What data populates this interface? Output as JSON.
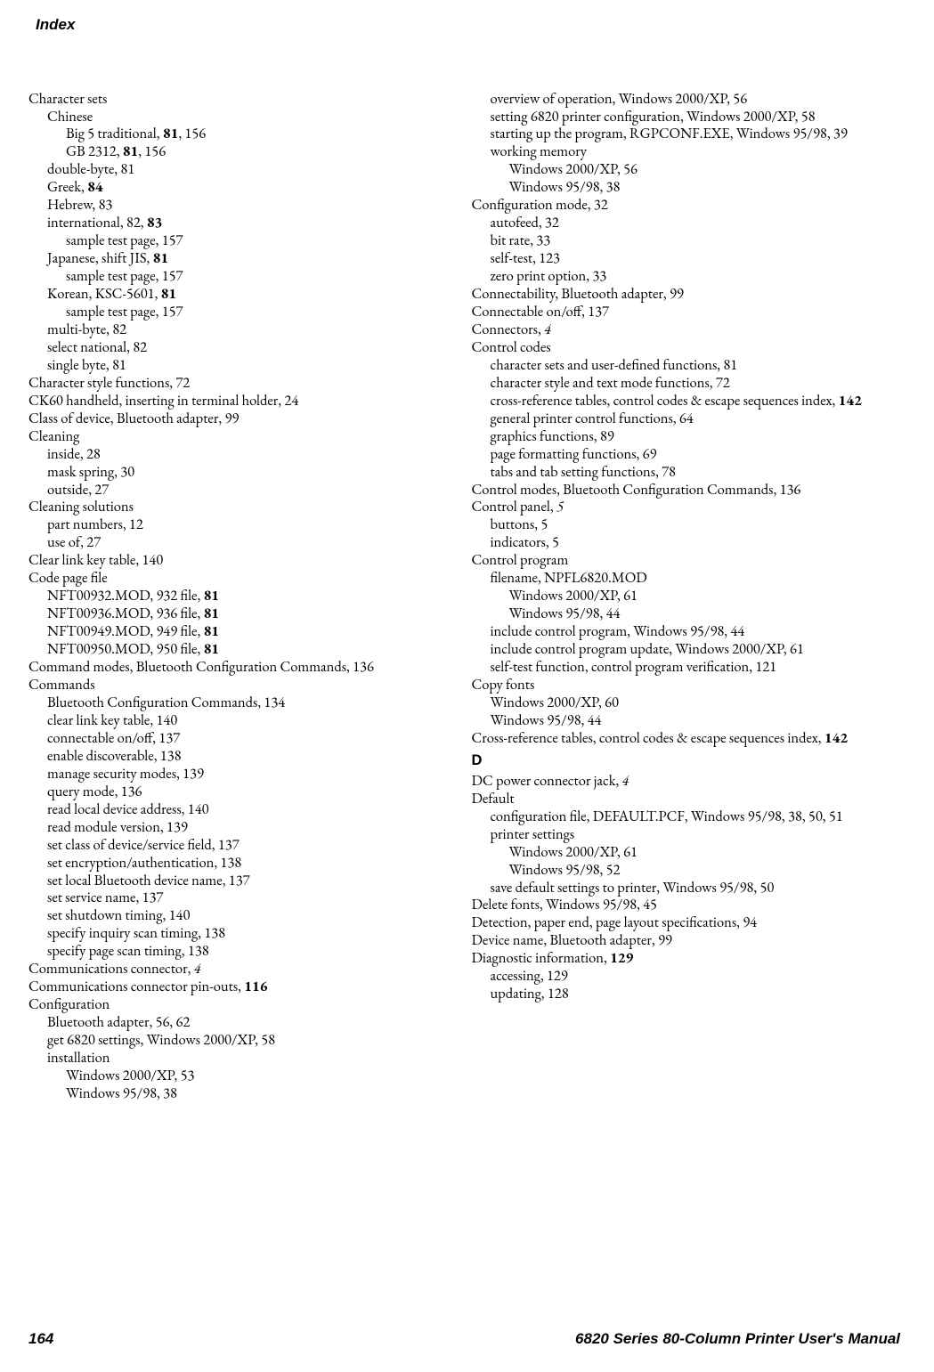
{
  "header": "Index",
  "footer": {
    "page": "164",
    "title": "6820 Series 80-Column Printer User's Manual"
  },
  "left": [
    {
      "lv": 0,
      "t": "Character sets"
    },
    {
      "lv": 1,
      "t": "Chinese"
    },
    {
      "lv": 2,
      "seg": [
        "Big 5 traditional, ",
        {
          "b": "81"
        },
        ", 156"
      ]
    },
    {
      "lv": 2,
      "seg": [
        "GB 2312, ",
        {
          "b": "81"
        },
        ", 156"
      ]
    },
    {
      "lv": 1,
      "t": "double-byte, 81"
    },
    {
      "lv": 1,
      "seg": [
        "Greek, ",
        {
          "b": "84"
        }
      ]
    },
    {
      "lv": 1,
      "t": "Hebrew, 83"
    },
    {
      "lv": 1,
      "seg": [
        "international, 82, ",
        {
          "b": "83"
        }
      ]
    },
    {
      "lv": 2,
      "t": "sample test page, 157"
    },
    {
      "lv": 1,
      "seg": [
        "Japanese, shift JIS, ",
        {
          "b": "81"
        }
      ]
    },
    {
      "lv": 2,
      "t": "sample test page, 157"
    },
    {
      "lv": 1,
      "seg": [
        "Korean, KSC-5601, ",
        {
          "b": "81"
        }
      ]
    },
    {
      "lv": 2,
      "t": "sample test page, 157"
    },
    {
      "lv": 1,
      "t": "multi-byte, 82"
    },
    {
      "lv": 1,
      "t": "select national, 82"
    },
    {
      "lv": 1,
      "t": "single byte, 81"
    },
    {
      "lv": 0,
      "t": "Character style functions, 72"
    },
    {
      "lv": 0,
      "t": "CK60 handheld, inserting in terminal holder, 24"
    },
    {
      "lv": 0,
      "t": "Class of device, Bluetooth adapter, 99"
    },
    {
      "lv": 0,
      "t": "Cleaning"
    },
    {
      "lv": 1,
      "t": "inside, 28"
    },
    {
      "lv": 1,
      "t": "mask spring, 30"
    },
    {
      "lv": 1,
      "t": "outside, 27"
    },
    {
      "lv": 0,
      "t": "Cleaning solutions"
    },
    {
      "lv": 1,
      "t": "part numbers, 12"
    },
    {
      "lv": 1,
      "t": "use of, 27"
    },
    {
      "lv": 0,
      "t": "Clear link key table, 140"
    },
    {
      "lv": 0,
      "t": "Code page file"
    },
    {
      "lv": 1,
      "seg": [
        "NFT00932.MOD, 932 file, ",
        {
          "b": "81"
        }
      ]
    },
    {
      "lv": 1,
      "seg": [
        "NFT00936.MOD, 936 file, ",
        {
          "b": "81"
        }
      ]
    },
    {
      "lv": 1,
      "seg": [
        "NFT00949.MOD, 949 file, ",
        {
          "b": "81"
        }
      ]
    },
    {
      "lv": 1,
      "seg": [
        "NFT00950.MOD, 950 file, ",
        {
          "b": "81"
        }
      ]
    },
    {
      "lv": 0,
      "wrap": true,
      "t": "Command modes, Bluetooth Configuration Commands, 136"
    },
    {
      "lv": 0,
      "t": "Commands"
    },
    {
      "lv": 1,
      "t": "Bluetooth Configuration Commands, 134"
    },
    {
      "lv": 1,
      "t": "clear link key table, 140"
    },
    {
      "lv": 1,
      "t": "connectable on/off, 137"
    },
    {
      "lv": 1,
      "t": "enable discoverable, 138"
    },
    {
      "lv": 1,
      "t": "manage security modes, 139"
    },
    {
      "lv": 1,
      "t": "query mode, 136"
    },
    {
      "lv": 1,
      "t": "read local device address, 140"
    },
    {
      "lv": 1,
      "t": "read module version, 139"
    },
    {
      "lv": 1,
      "t": "set class of device/service field, 137"
    },
    {
      "lv": 1,
      "t": "set encryption/authentication, 138"
    },
    {
      "lv": 1,
      "t": "set local Bluetooth device name, 137"
    },
    {
      "lv": 1,
      "t": "set service name, 137"
    },
    {
      "lv": 1,
      "t": "set shutdown timing, 140"
    },
    {
      "lv": 1,
      "t": "specify inquiry scan timing, 138"
    },
    {
      "lv": 1,
      "t": "specify page scan timing, 138"
    },
    {
      "lv": 0,
      "seg": [
        "Communications connector, ",
        {
          "i": "4"
        }
      ]
    },
    {
      "lv": 0,
      "seg": [
        "Communications connector pin-outs, ",
        {
          "b": "116"
        }
      ]
    },
    {
      "lv": 0,
      "t": "Configuration"
    },
    {
      "lv": 1,
      "t": "Bluetooth adapter, 56, 62"
    },
    {
      "lv": 1,
      "t": "get 6820 settings, Windows 2000/XP, 58"
    },
    {
      "lv": 1,
      "t": "installation"
    },
    {
      "lv": 2,
      "t": "Windows 2000/XP, 53"
    },
    {
      "lv": 2,
      "t": "Windows 95/98, 38"
    }
  ],
  "right": [
    {
      "lv": 1,
      "t": "overview of operation, Windows 2000/XP, 56"
    },
    {
      "lv": 1,
      "wrap": true,
      "t": "setting 6820 printer configuration, Windows 2000/XP, 58"
    },
    {
      "lv": 1,
      "wrap": true,
      "t": "starting up the program, RGPCONF.EXE, Windows 95/98, 39"
    },
    {
      "lv": 1,
      "t": "working memory"
    },
    {
      "lv": 2,
      "t": "Windows 2000/XP, 56"
    },
    {
      "lv": 2,
      "t": "Windows 95/98, 38"
    },
    {
      "lv": 0,
      "t": "Configuration mode, 32"
    },
    {
      "lv": 1,
      "t": "autofeed, 32"
    },
    {
      "lv": 1,
      "t": "bit rate, 33"
    },
    {
      "lv": 1,
      "t": "self-test, 123"
    },
    {
      "lv": 1,
      "t": "zero print option, 33"
    },
    {
      "lv": 0,
      "t": "Connectability, Bluetooth adapter, 99"
    },
    {
      "lv": 0,
      "t": "Connectable on/off, 137"
    },
    {
      "lv": 0,
      "seg": [
        "Connectors, ",
        {
          "i": "4"
        }
      ]
    },
    {
      "lv": 0,
      "t": "Control codes"
    },
    {
      "lv": 1,
      "t": "character sets and user-defined functions, 81"
    },
    {
      "lv": 1,
      "t": "character style and text mode functions, 72"
    },
    {
      "lv": 1,
      "wrap": true,
      "seg": [
        "cross-reference tables, control codes & escape sequences index, ",
        {
          "b": "142"
        }
      ]
    },
    {
      "lv": 1,
      "t": "general printer control functions, 64"
    },
    {
      "lv": 1,
      "t": "graphics functions, 89"
    },
    {
      "lv": 1,
      "t": "page formatting functions, 69"
    },
    {
      "lv": 1,
      "t": "tabs and tab setting functions, 78"
    },
    {
      "lv": 0,
      "t": "Control modes, Bluetooth Configuration Commands, 136"
    },
    {
      "lv": 0,
      "seg": [
        "Control panel, ",
        {
          "i": "5"
        }
      ]
    },
    {
      "lv": 1,
      "t": "buttons, 5"
    },
    {
      "lv": 1,
      "t": "indicators, 5"
    },
    {
      "lv": 0,
      "t": "Control program"
    },
    {
      "lv": 1,
      "t": "filename, NPFL6820.MOD"
    },
    {
      "lv": 2,
      "t": "Windows 2000/XP, 61"
    },
    {
      "lv": 2,
      "t": "Windows 95/98, 44"
    },
    {
      "lv": 1,
      "t": "include control program, Windows 95/98, 44"
    },
    {
      "lv": 1,
      "t": "include control program update, Windows 2000/XP, 61"
    },
    {
      "lv": 1,
      "t": "self-test function, control program verification, 121"
    },
    {
      "lv": 0,
      "t": "Copy fonts"
    },
    {
      "lv": 1,
      "t": "Windows 2000/XP, 60"
    },
    {
      "lv": 1,
      "t": "Windows 95/98, 44"
    },
    {
      "lv": 0,
      "wrap": true,
      "seg": [
        "Cross-reference tables, control codes & escape sequences index, ",
        {
          "b": "142"
        }
      ]
    },
    {
      "section": "D"
    },
    {
      "lv": 0,
      "seg": [
        "DC power connector jack, ",
        {
          "i": "4"
        }
      ]
    },
    {
      "lv": 0,
      "t": "Default"
    },
    {
      "lv": 1,
      "wrap": true,
      "t": "configuration file, DEFAULT.PCF, Windows 95/98, 38, 50, 51"
    },
    {
      "lv": 1,
      "t": "printer settings"
    },
    {
      "lv": 2,
      "t": "Windows 2000/XP, 61"
    },
    {
      "lv": 2,
      "t": "Windows 95/98, 52"
    },
    {
      "lv": 1,
      "t": "save default settings to printer, Windows 95/98, 50"
    },
    {
      "lv": 0,
      "t": "Delete fonts, Windows 95/98, 45"
    },
    {
      "lv": 0,
      "t": "Detection, paper end, page layout specifications, 94"
    },
    {
      "lv": 0,
      "t": "Device name, Bluetooth adapter, 99"
    },
    {
      "lv": 0,
      "seg": [
        "Diagnostic information, ",
        {
          "b": "129"
        }
      ]
    },
    {
      "lv": 1,
      "t": "accessing, 129"
    },
    {
      "lv": 1,
      "t": "updating, 128"
    }
  ]
}
